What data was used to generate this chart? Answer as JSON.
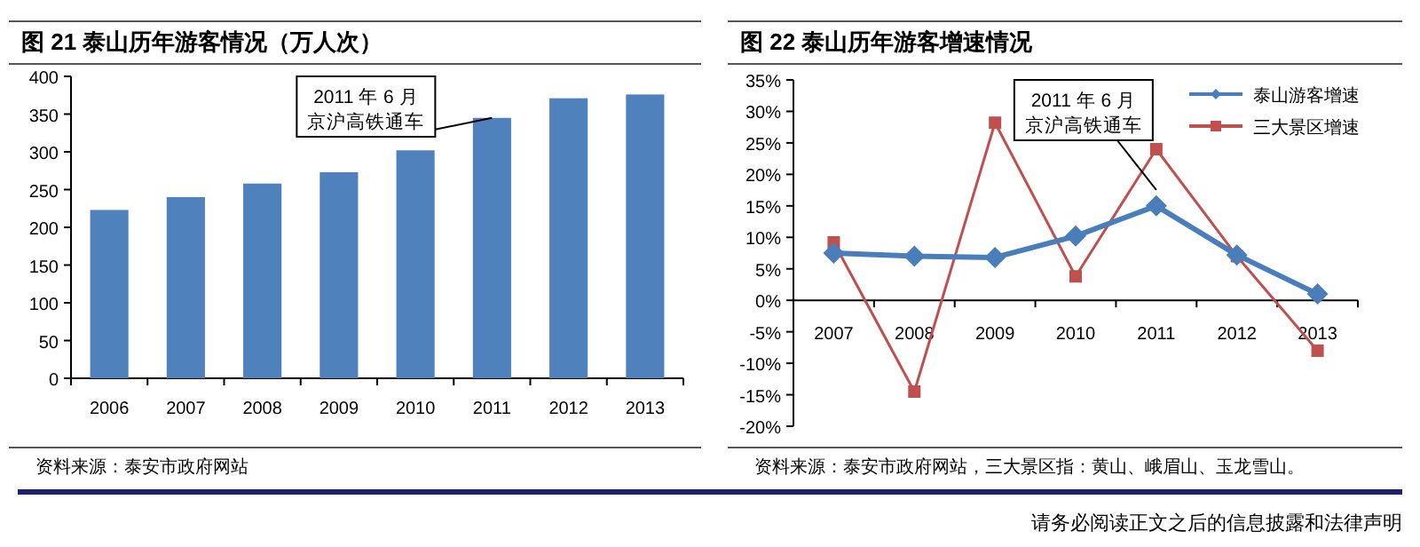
{
  "chart_data": [
    {
      "type": "bar",
      "title": "图 21 泰山历年游客情况（万人次）",
      "categories": [
        "2006",
        "2007",
        "2008",
        "2009",
        "2010",
        "2011",
        "2012",
        "2013"
      ],
      "series": [
        {
          "color": "#4f81bd",
          "values": [
            223,
            240,
            258,
            273,
            302,
            345,
            371,
            376
          ]
        }
      ],
      "ylim": [
        0,
        400
      ],
      "yticks": [
        0,
        50,
        100,
        150,
        200,
        250,
        300,
        350,
        400
      ],
      "grid": false,
      "legend": false,
      "annotations": [
        {
          "text": "2011 年 6 月京沪高铁通车",
          "x": "2011",
          "y": 345
        },
        "资料来源：泰安市政府网站"
      ]
    },
    {
      "type": "line",
      "title": "图 22 泰山历年游客增速情况",
      "categories": [
        "2007",
        "2008",
        "2009",
        "2010",
        "2011",
        "2012",
        "2013"
      ],
      "series": [
        {
          "name": "泰山游客增速",
          "color": "#4a7ebb",
          "marker": "diamond",
          "values": [
            7.5,
            7,
            6.8,
            10.2,
            15,
            7.2,
            1
          ]
        },
        {
          "name": "三大景区增速",
          "color": "#c0504d",
          "marker": "square",
          "values": [
            9.2,
            -14.5,
            28.2,
            3.8,
            24,
            7,
            -8
          ]
        }
      ],
      "ylim": [
        -20,
        35
      ],
      "yticks": [
        {
          "value": -20,
          "label": "-20%"
        },
        {
          "value": -15,
          "label": "-15%"
        },
        {
          "value": -10,
          "label": "-10%"
        },
        {
          "value": -5,
          "label": "-5%"
        },
        {
          "value": 0,
          "label": "0%"
        },
        {
          "value": 5,
          "label": "5%"
        },
        {
          "value": 10,
          "label": "10%"
        },
        {
          "value": 15,
          "label": "15%"
        },
        {
          "value": 20,
          "label": "20%"
        },
        {
          "value": 25,
          "label": "25%"
        },
        {
          "value": 30,
          "label": "30%"
        },
        {
          "value": 35,
          "label": "35%"
        }
      ],
      "grid": false,
      "legend": "top right",
      "line_style": "solid",
      "annotations": [
        {
          "text": "2011 年 6 月京沪高铁通车",
          "x": "2011",
          "y": 15
        },
        "资料来源：泰安市政府网站，三大景区指：黄山、峨眉山、玉龙雪山。",
        "请务必阅读正文之后的信息披露和法律声明"
      ]
    }
  ]
}
